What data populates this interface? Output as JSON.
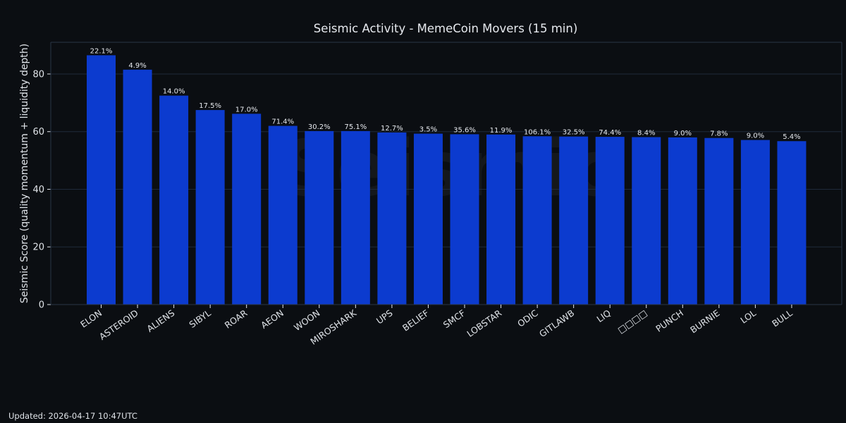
{
  "colors": {
    "background": "#0b0e12",
    "bar": "#0c3bcf",
    "grid": "#1f2a3a",
    "axis": "#2a3546",
    "text": "#e6e9ee"
  },
  "watermark": "Seismic",
  "footer": {
    "updated": "Updated: 2026-04-17 10:47UTC"
  },
  "chart_data": {
    "type": "bar",
    "title": "Seismic Activity - MemeCoin Movers (15 min)",
    "xlabel": "",
    "ylabel": "Seismic Score (quality momentum + liquidity depth)",
    "ylim": [
      0,
      91
    ],
    "yticks": [
      0,
      20,
      40,
      60,
      80
    ],
    "grid": true,
    "categories": [
      "ELON",
      "ASTEROID",
      "ALIENS",
      "SIBYL",
      "ROAR",
      "AEON",
      "WOON",
      "MIROSHARK",
      "UPS",
      "BELIEF",
      "SMCF",
      "LOBSTAR",
      "ODIC",
      "GITLAWB",
      "LIQ",
      "□□□□",
      "PUNCH",
      "BURNIE",
      "LOL",
      "BULL"
    ],
    "values": [
      86.5,
      81.5,
      72.5,
      67.5,
      66.2,
      62.0,
      60.2,
      60.2,
      59.7,
      59.3,
      59.1,
      59.0,
      58.4,
      58.3,
      58.2,
      58.1,
      58.0,
      57.8,
      57.1,
      56.7
    ],
    "data_labels": [
      "22.1%",
      "4.9%",
      "14.0%",
      "17.5%",
      "17.0%",
      "71.4%",
      "30.2%",
      "75.1%",
      "12.7%",
      "3.5%",
      "35.6%",
      "11.9%",
      "106.1%",
      "32.5%",
      "74.4%",
      "8.4%",
      "9.0%",
      "7.8%",
      "9.0%",
      "5.4%"
    ]
  }
}
